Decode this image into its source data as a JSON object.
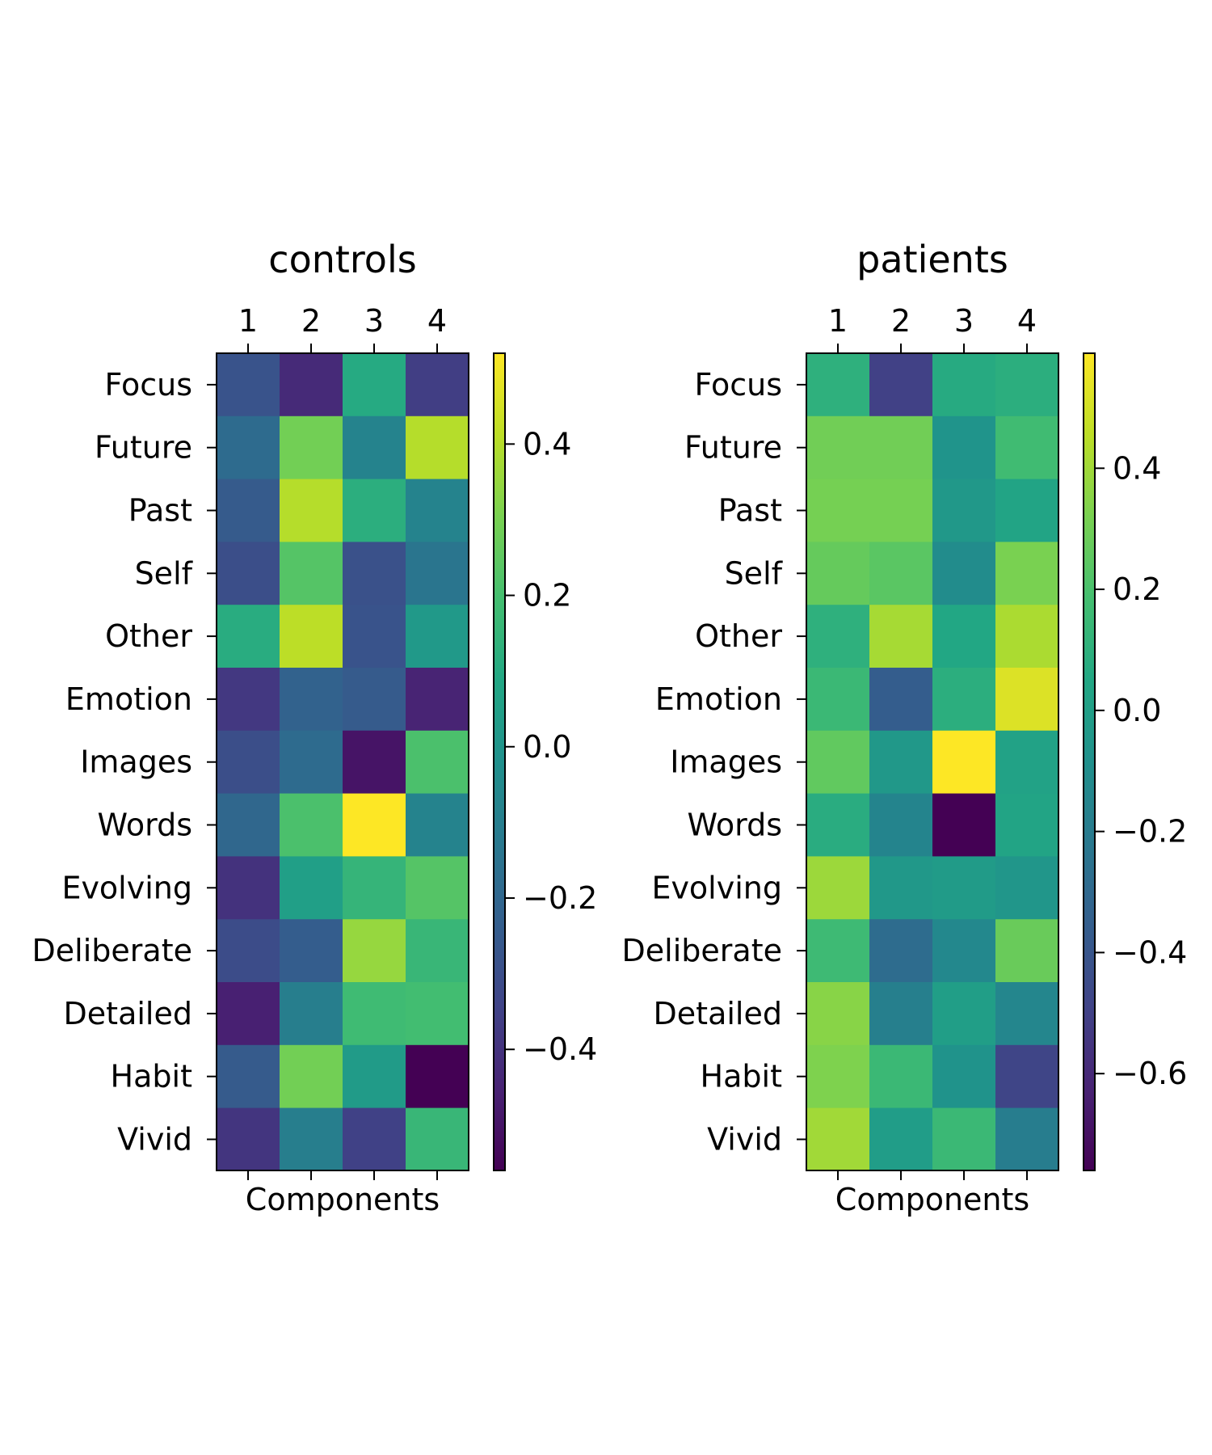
{
  "chart_data": [
    {
      "type": "heatmap",
      "title": "controls",
      "xlabel": "Components",
      "ylabel": "",
      "columns": [
        "1",
        "2",
        "3",
        "4"
      ],
      "rows": [
        "Focus",
        "Future",
        "Past",
        "Self",
        "Other",
        "Emotion",
        "Images",
        "Words",
        "Evolving",
        "Deliberate",
        "Detailed",
        "Habit",
        "Vivid"
      ],
      "values": [
        [
          -0.28,
          -0.43,
          0.1,
          -0.36
        ],
        [
          -0.18,
          0.29,
          -0.08,
          0.4
        ],
        [
          -0.25,
          0.4,
          0.12,
          -0.08
        ],
        [
          -0.3,
          0.23,
          -0.29,
          -0.14
        ],
        [
          0.11,
          0.41,
          -0.28,
          0.02
        ],
        [
          -0.38,
          -0.22,
          -0.25,
          -0.45
        ],
        [
          -0.3,
          -0.18,
          -0.5,
          0.21
        ],
        [
          -0.2,
          0.21,
          0.52,
          -0.08
        ],
        [
          -0.4,
          0.05,
          0.15,
          0.23
        ],
        [
          -0.31,
          -0.24,
          0.35,
          0.16
        ],
        [
          -0.46,
          -0.1,
          0.18,
          0.19
        ],
        [
          -0.25,
          0.29,
          0.03,
          -0.56
        ],
        [
          -0.39,
          -0.1,
          -0.35,
          0.16
        ]
      ],
      "colorbar": {
        "min": -0.56,
        "max": 0.52,
        "ticks": [
          "0.4",
          "0.2",
          "0.0",
          "−0.2",
          "−0.4"
        ],
        "tick_values": [
          0.4,
          0.2,
          0.0,
          -0.2,
          -0.4
        ]
      },
      "colormap": "viridis"
    },
    {
      "type": "heatmap",
      "title": "patients",
      "xlabel": "Components",
      "ylabel": "",
      "columns": [
        "1",
        "2",
        "3",
        "4"
      ],
      "rows": [
        "Focus",
        "Future",
        "Past",
        "Self",
        "Other",
        "Emotion",
        "Images",
        "Words",
        "Evolving",
        "Deliberate",
        "Detailed",
        "Habit",
        "Vivid"
      ],
      "values": [
        [
          0.1,
          -0.5,
          0.07,
          0.09
        ],
        [
          0.3,
          0.3,
          -0.06,
          0.17
        ],
        [
          0.31,
          0.31,
          -0.04,
          0.03
        ],
        [
          0.27,
          0.24,
          -0.11,
          0.32
        ],
        [
          0.1,
          0.41,
          0.05,
          0.42
        ],
        [
          0.15,
          -0.36,
          0.09,
          0.52
        ],
        [
          0.26,
          -0.04,
          0.59,
          0.02
        ],
        [
          0.08,
          -0.15,
          -0.76,
          0.03
        ],
        [
          0.39,
          -0.04,
          -0.02,
          -0.05
        ],
        [
          0.16,
          -0.28,
          -0.13,
          0.28
        ],
        [
          0.35,
          -0.18,
          0.0,
          -0.14
        ],
        [
          0.33,
          0.15,
          -0.07,
          -0.48
        ],
        [
          0.4,
          -0.01,
          0.15,
          -0.19
        ]
      ],
      "colorbar": {
        "min": -0.76,
        "max": 0.59,
        "ticks": [
          "0.4",
          "0.2",
          "0.0",
          "−0.2",
          "−0.4",
          "−0.6"
        ],
        "tick_values": [
          0.4,
          0.2,
          0.0,
          -0.2,
          -0.4,
          -0.6
        ]
      },
      "colormap": "viridis"
    }
  ]
}
